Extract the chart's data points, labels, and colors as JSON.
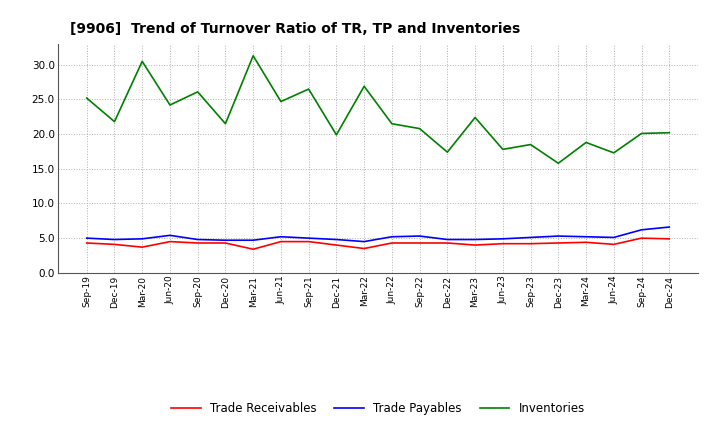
{
  "title": "[9906]  Trend of Turnover Ratio of TR, TP and Inventories",
  "x_labels": [
    "Sep-19",
    "Dec-19",
    "Mar-20",
    "Jun-20",
    "Sep-20",
    "Dec-20",
    "Mar-21",
    "Jun-21",
    "Sep-21",
    "Dec-21",
    "Mar-22",
    "Jun-22",
    "Sep-22",
    "Dec-22",
    "Mar-23",
    "Jun-23",
    "Sep-23",
    "Dec-23",
    "Mar-24",
    "Jun-24",
    "Sep-24",
    "Dec-24"
  ],
  "trade_receivables": [
    4.3,
    4.1,
    3.7,
    4.5,
    4.3,
    4.3,
    3.4,
    4.5,
    4.5,
    4.0,
    3.5,
    4.3,
    4.3,
    4.3,
    4.0,
    4.2,
    4.2,
    4.3,
    4.4,
    4.1,
    5.0,
    4.9
  ],
  "trade_payables": [
    5.0,
    4.8,
    4.9,
    5.4,
    4.8,
    4.7,
    4.7,
    5.2,
    5.0,
    4.8,
    4.5,
    5.2,
    5.3,
    4.8,
    4.8,
    4.9,
    5.1,
    5.3,
    5.2,
    5.1,
    6.2,
    6.6
  ],
  "inventories": [
    25.2,
    21.8,
    30.5,
    24.2,
    26.1,
    21.5,
    31.3,
    24.7,
    26.5,
    19.9,
    26.9,
    21.5,
    20.8,
    17.4,
    22.4,
    17.8,
    18.5,
    15.8,
    18.8,
    17.3,
    20.1,
    20.2
  ],
  "ylim": [
    0.0,
    33.0
  ],
  "yticks": [
    0.0,
    5.0,
    10.0,
    15.0,
    20.0,
    25.0,
    30.0
  ],
  "color_tr": "#ff0000",
  "color_tp": "#0000ff",
  "color_inv": "#008000",
  "legend_labels": [
    "Trade Receivables",
    "Trade Payables",
    "Inventories"
  ],
  "background_color": "#ffffff",
  "grid_color": "#b0b0b0"
}
